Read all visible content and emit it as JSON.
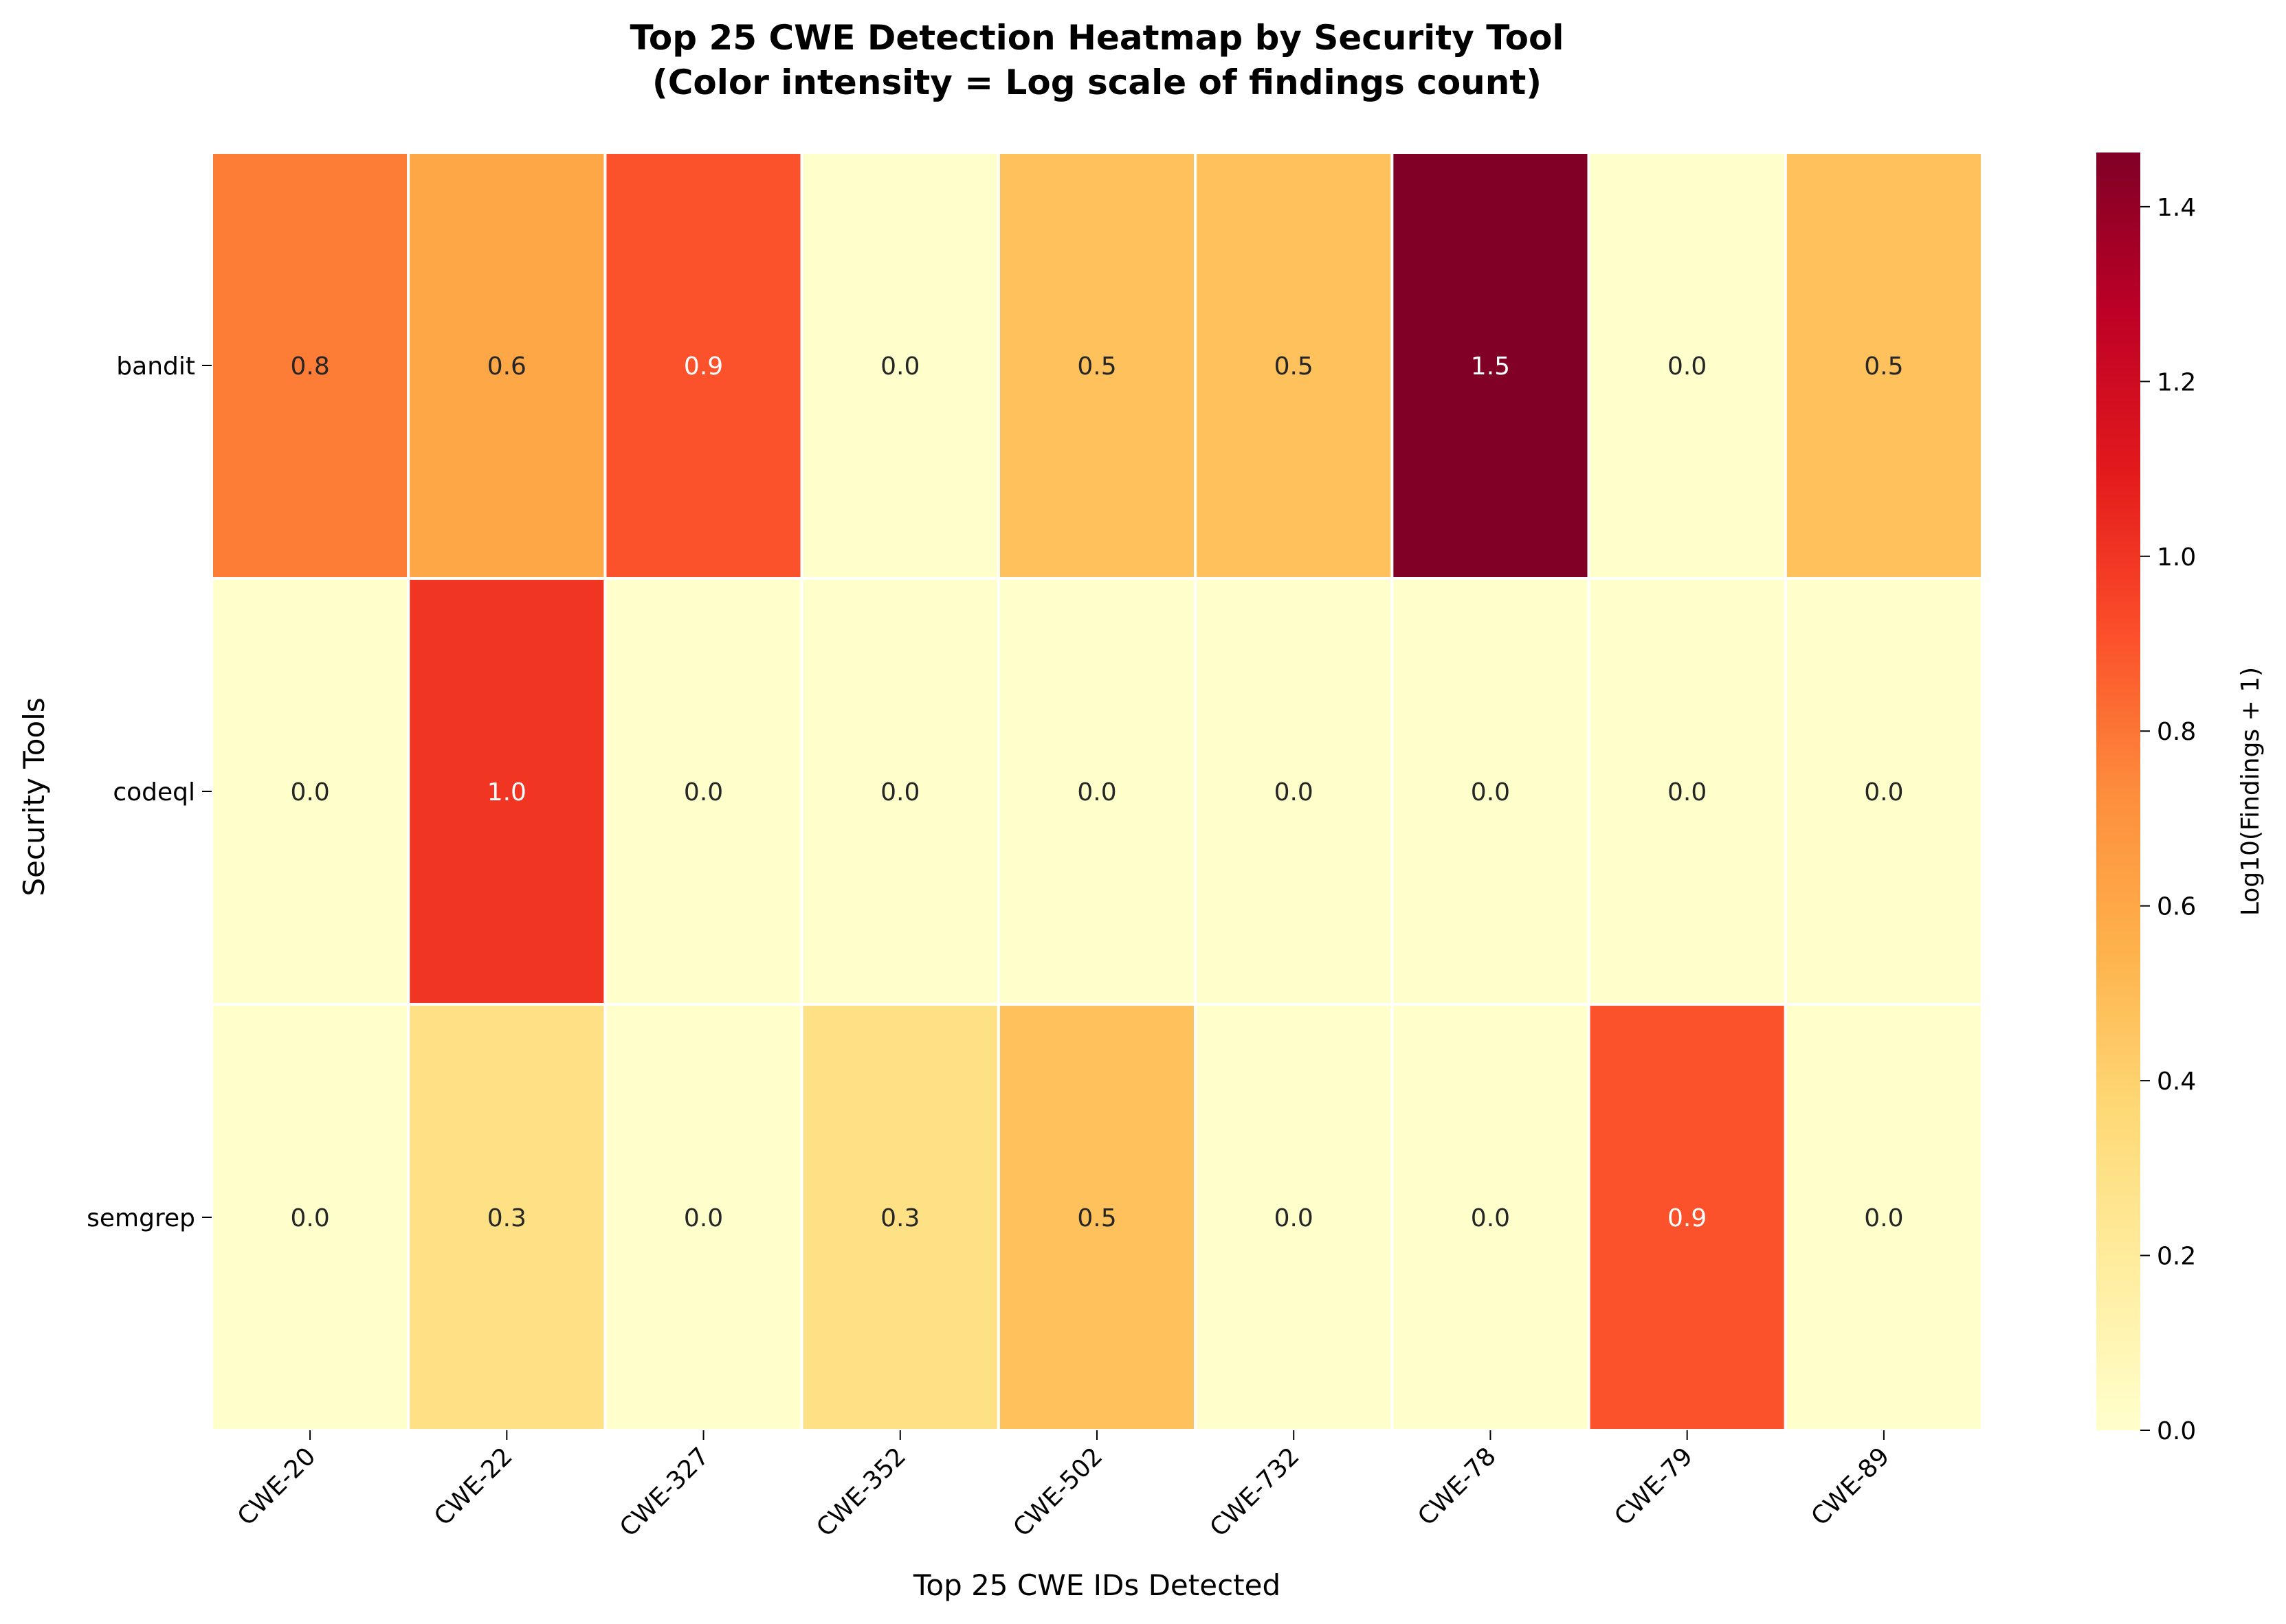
{
  "chart_data": {
    "type": "heatmap",
    "title_lines": [
      "Top 25 CWE Detection Heatmap by Security Tool",
      "(Color intensity = Log scale of findings count)"
    ],
    "xlabel": "Top 25 CWE IDs Detected",
    "ylabel": "Security Tools",
    "x_categories": [
      "CWE-20",
      "CWE-22",
      "CWE-327",
      "CWE-352",
      "CWE-502",
      "CWE-732",
      "CWE-78",
      "CWE-79",
      "CWE-89"
    ],
    "y_categories": [
      "bandit",
      "codeql",
      "semgrep"
    ],
    "values": [
      [
        0.778,
        0.602,
        0.903,
        0.0,
        0.477,
        0.477,
        1.462,
        0.0,
        0.477
      ],
      [
        0.0,
        1.0,
        0.0,
        0.0,
        0.0,
        0.0,
        0.0,
        0.0,
        0.0
      ],
      [
        0.0,
        0.301,
        0.0,
        0.301,
        0.477,
        0.0,
        0.0,
        0.903,
        0.0
      ]
    ],
    "annotations": [
      [
        "0.8",
        "0.6",
        "0.9",
        "0.0",
        "0.5",
        "0.5",
        "1.5",
        "0.0",
        "0.5"
      ],
      [
        "0.0",
        "1.0",
        "0.0",
        "0.0",
        "0.0",
        "0.0",
        "0.0",
        "0.0",
        "0.0"
      ],
      [
        "0.0",
        "0.3",
        "0.0",
        "0.3",
        "0.5",
        "0.0",
        "0.0",
        "0.9",
        "0.0"
      ]
    ],
    "colormap": "YlOrRd",
    "colorbar": {
      "label": "Log10(Findings + 1)",
      "range": [
        0,
        1.462
      ],
      "ticks": [
        "0.0",
        "0.2",
        "0.4",
        "0.6",
        "0.8",
        "1.0",
        "1.2",
        "1.4"
      ]
    }
  }
}
